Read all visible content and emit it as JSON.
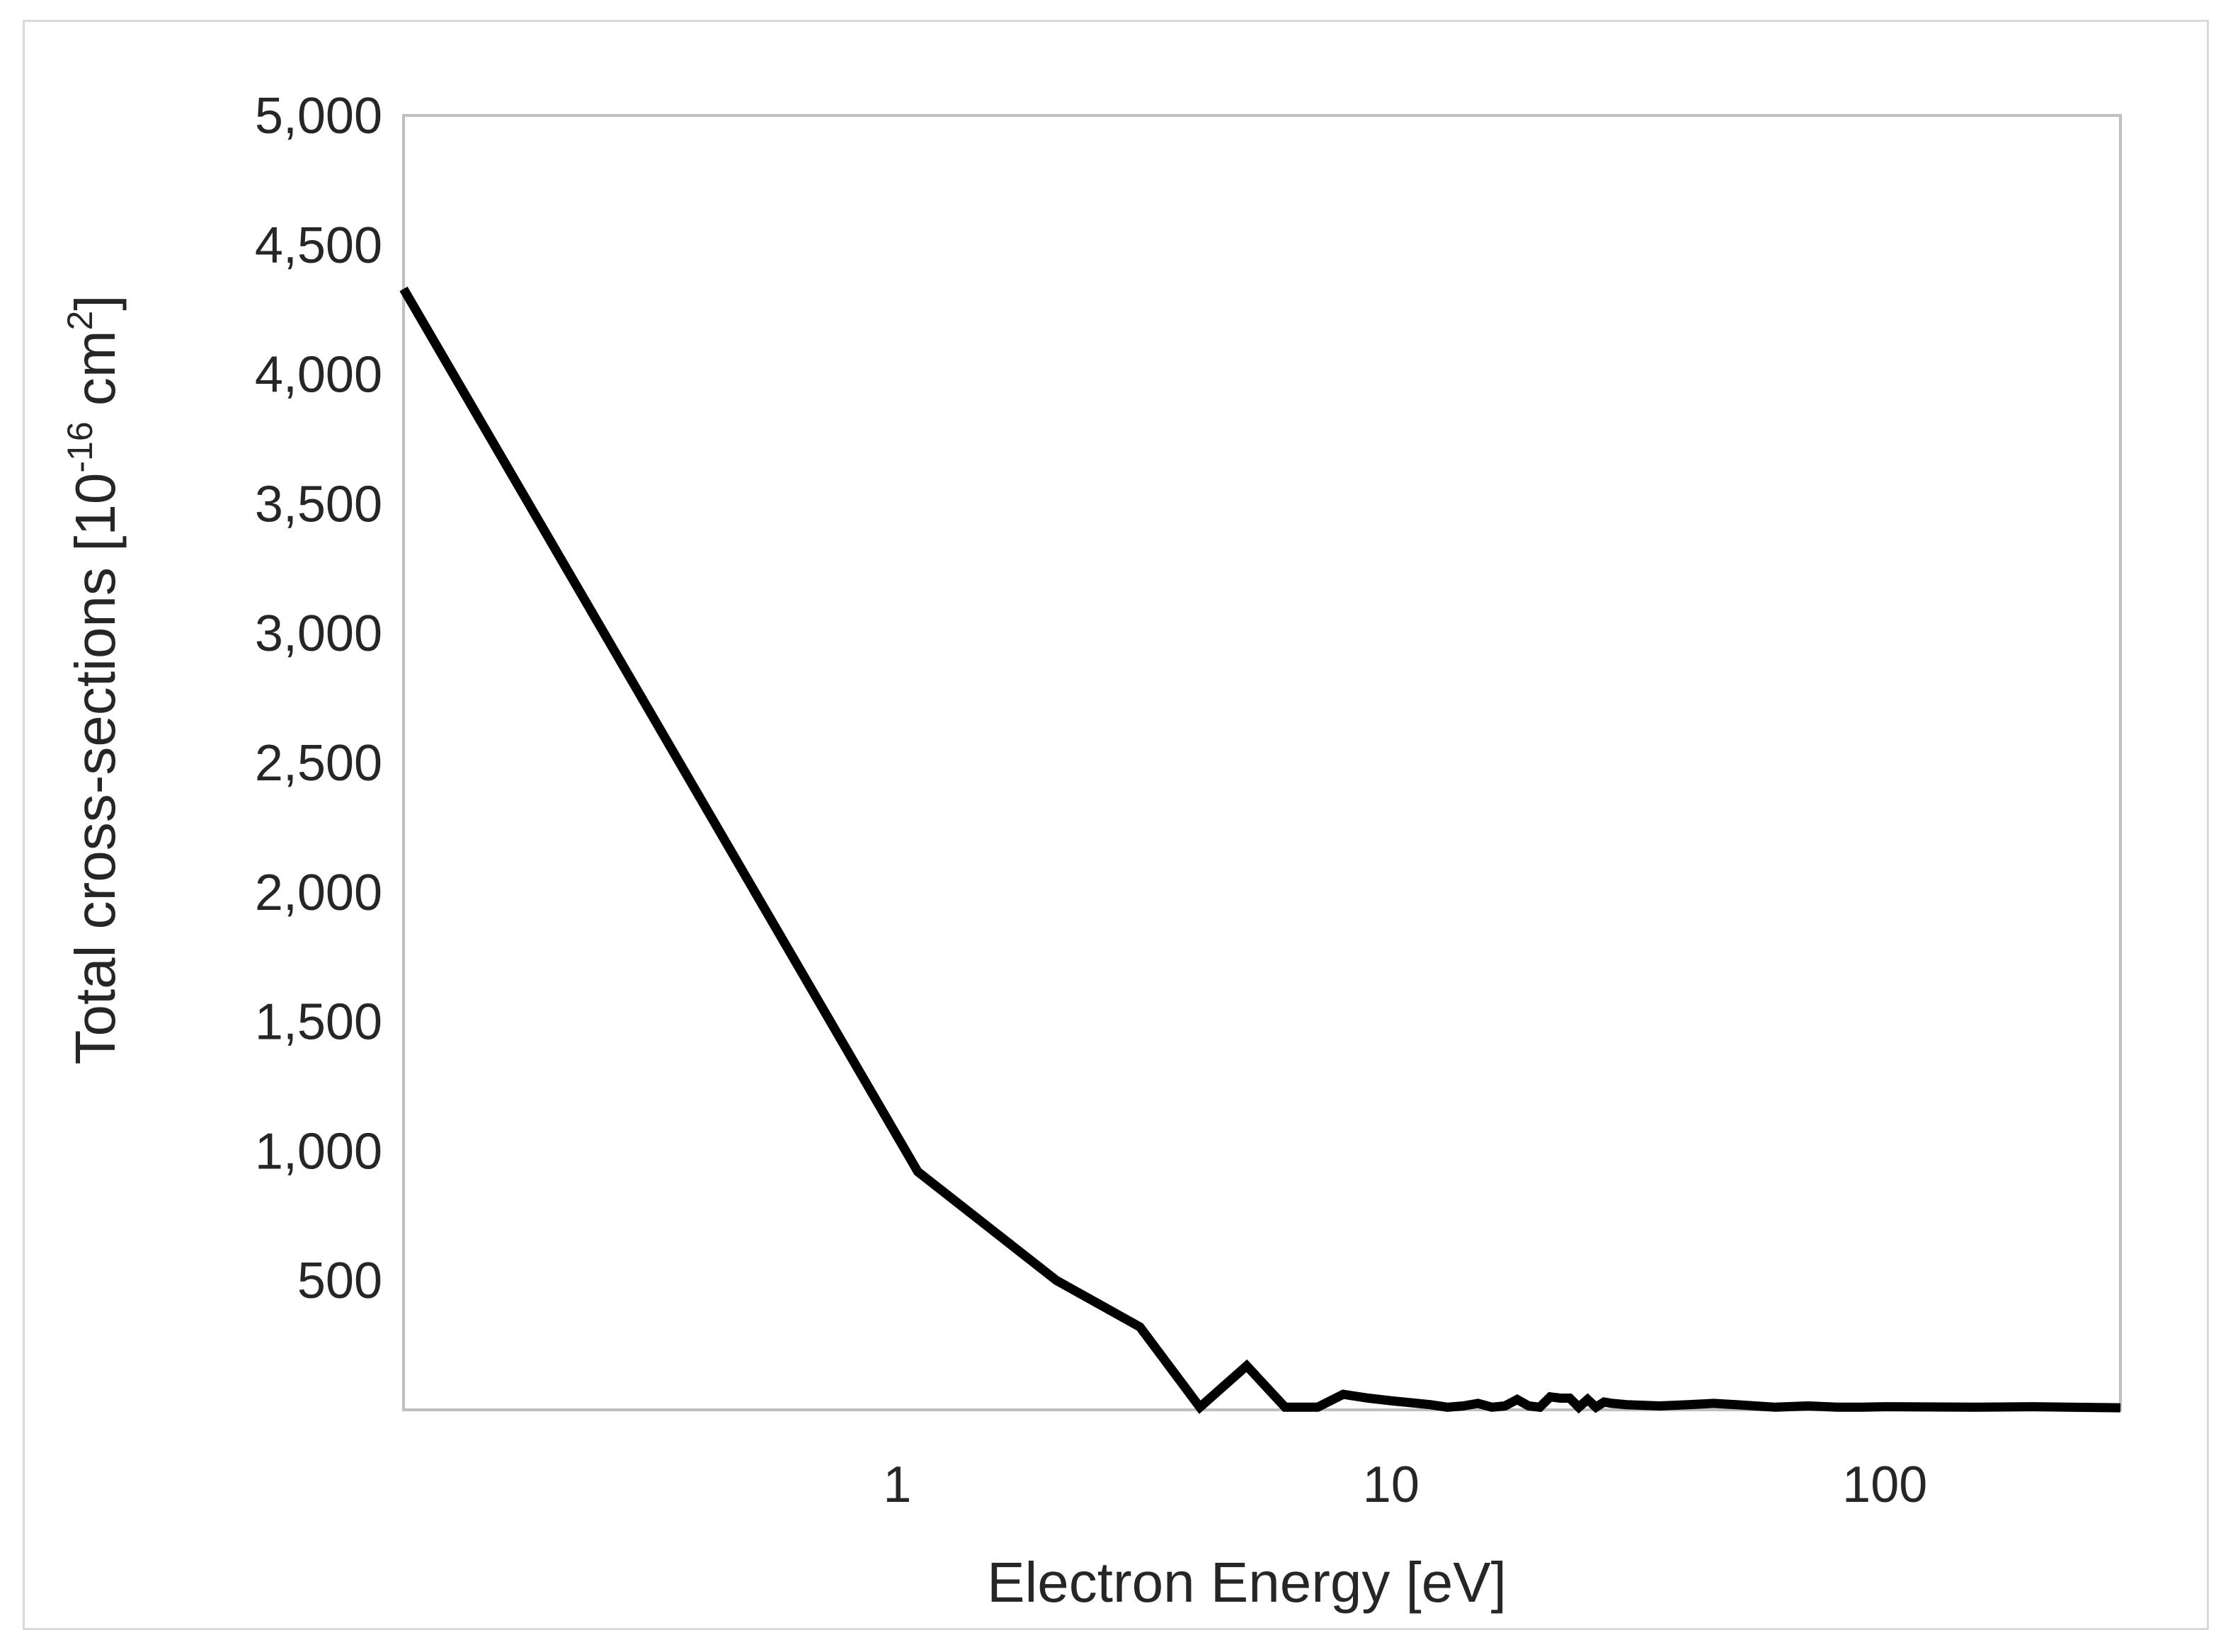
{
  "chart_data": {
    "type": "line",
    "title": "",
    "xlabel": "Electron Energy [eV]",
    "ylabel": {
      "prefix": "Total cross-sections [10",
      "exp": "-16",
      "unit": " cm",
      "unit_exp": "2",
      "suffix": "]"
    },
    "xscale": "log",
    "xlim": [
      0.1,
      300
    ],
    "ylim": [
      0,
      5000
    ],
    "xticks": [
      1,
      10,
      100
    ],
    "xtick_labels": [
      "1",
      "10",
      "100"
    ],
    "yticks": [
      500,
      1000,
      1500,
      2000,
      2500,
      3000,
      3500,
      4000,
      4500,
      5000
    ],
    "ytick_labels": [
      "500",
      "1,000",
      "1,500",
      "2,000",
      "2,500",
      "3,000",
      "3,500",
      "4,000",
      "4,500",
      "5,000"
    ],
    "grid": false,
    "legend": false,
    "series": [
      {
        "name": "Total cross-sections",
        "color": "#000000",
        "x": [
          0.1,
          1.1,
          2.1,
          3.1,
          4.1,
          5.1,
          6.1,
          7.1,
          8,
          9,
          10,
          12,
          13,
          14,
          15,
          16,
          17,
          18,
          19,
          20,
          21,
          22,
          23,
          24,
          25,
          26,
          27,
          28,
          30,
          35,
          40,
          45,
          50,
          60,
          70,
          80,
          90,
          100,
          150,
          200,
          300
        ],
        "y": [
          4330,
          920,
          500,
          320,
          10,
          170,
          10,
          10,
          60,
          45,
          35,
          20,
          10,
          15,
          25,
          10,
          15,
          40,
          15,
          10,
          50,
          45,
          45,
          10,
          40,
          10,
          30,
          25,
          20,
          15,
          20,
          25,
          20,
          10,
          15,
          10,
          10,
          12,
          10,
          12,
          8
        ]
      }
    ]
  }
}
